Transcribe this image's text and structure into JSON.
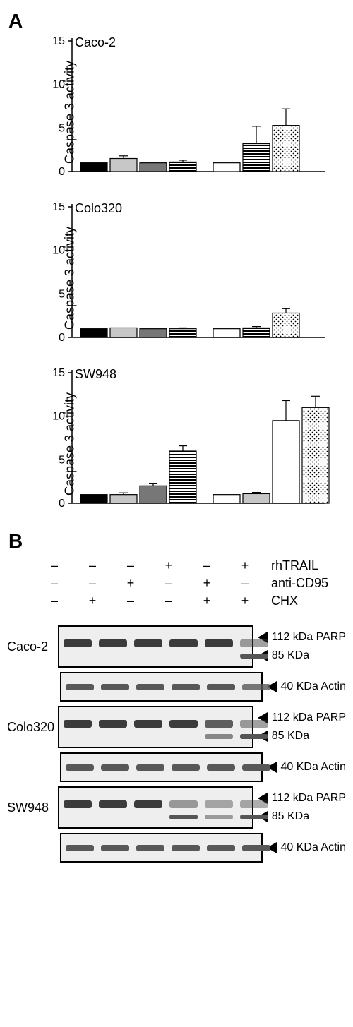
{
  "panelA": {
    "label": "A",
    "ylabel": "Caspase 3 activity",
    "ymax": 15,
    "ytick_step": 5,
    "charts": [
      {
        "title": "Caco-2",
        "bars": [
          {
            "val": 1.0,
            "err": 0,
            "fill": "#000000",
            "pattern": "none"
          },
          {
            "val": 1.5,
            "err": 0.3,
            "fill": "#c7c7c7",
            "pattern": "none"
          },
          {
            "val": 1.0,
            "err": 0,
            "fill": "#777777",
            "pattern": "none"
          },
          {
            "val": 1.1,
            "err": 0.2,
            "fill": "#ffffff",
            "pattern": "hstripe"
          },
          {
            "val": 1.0,
            "err": 0,
            "fill": "#ffffff",
            "pattern": "none"
          },
          {
            "val": 3.2,
            "err": 2.0,
            "fill": "#ffffff",
            "pattern": "hstripe"
          },
          {
            "val": 5.3,
            "err": 1.9,
            "fill": "#ffffff",
            "pattern": "dots"
          }
        ],
        "gaps_after": [
          3
        ]
      },
      {
        "title": "Colo320",
        "bars": [
          {
            "val": 1.0,
            "err": 0,
            "fill": "#000000",
            "pattern": "none"
          },
          {
            "val": 1.1,
            "err": 0,
            "fill": "#c7c7c7",
            "pattern": "none"
          },
          {
            "val": 1.0,
            "err": 0,
            "fill": "#777777",
            "pattern": "none"
          },
          {
            "val": 1.0,
            "err": 0.1,
            "fill": "#ffffff",
            "pattern": "hstripe"
          },
          {
            "val": 1.0,
            "err": 0,
            "fill": "#ffffff",
            "pattern": "none"
          },
          {
            "val": 1.1,
            "err": 0.15,
            "fill": "#ffffff",
            "pattern": "hstripe"
          },
          {
            "val": 2.8,
            "err": 0.5,
            "fill": "#ffffff",
            "pattern": "dots"
          }
        ],
        "gaps_after": [
          3
        ]
      },
      {
        "title": "SW948",
        "bars": [
          {
            "val": 1.0,
            "err": 0,
            "fill": "#000000",
            "pattern": "none"
          },
          {
            "val": 1.0,
            "err": 0.2,
            "fill": "#c7c7c7",
            "pattern": "none"
          },
          {
            "val": 2.0,
            "err": 0.3,
            "fill": "#777777",
            "pattern": "none"
          },
          {
            "val": 6.0,
            "err": 0.6,
            "fill": "#ffffff",
            "pattern": "hstripe"
          },
          {
            "val": 1.0,
            "err": 0,
            "fill": "#ffffff",
            "pattern": "none"
          },
          {
            "val": 1.1,
            "err": 0.15,
            "fill": "#c7c7c7",
            "pattern": "none"
          },
          {
            "val": 9.5,
            "err": 2.3,
            "fill": "#ffffff",
            "pattern": "none"
          },
          {
            "val": 11.0,
            "err": 1.3,
            "fill": "#ffffff",
            "pattern": "dots"
          }
        ],
        "gaps_after": [
          3
        ]
      }
    ]
  },
  "panelB": {
    "label": "B",
    "treatments": {
      "rows": [
        {
          "label": "rhTRAIL",
          "marks": [
            "–",
            "–",
            "–",
            "+",
            "–",
            "+"
          ]
        },
        {
          "label": "anti-CD95",
          "marks": [
            "–",
            "–",
            "+",
            "–",
            "+",
            "–"
          ]
        },
        {
          "label": "CHX",
          "marks": [
            "–",
            "+",
            "–",
            "–",
            "+",
            "+"
          ]
        }
      ]
    },
    "band_labels": {
      "parp_full": "112 kDa PARP",
      "parp_cleaved": "85 KDa",
      "actin": "40 KDa Actin"
    },
    "cells": [
      {
        "name": "Caco-2",
        "parp_full": [
          1,
          1,
          1,
          1,
          1,
          0.2
        ],
        "parp_cleaved": [
          0,
          0,
          0,
          0,
          0,
          1
        ],
        "actin": [
          1,
          1,
          1,
          1,
          1,
          0.7
        ]
      },
      {
        "name": "Colo320",
        "parp_full": [
          1,
          1,
          1,
          1,
          0.7,
          0.2
        ],
        "parp_cleaved": [
          0,
          0,
          0,
          0,
          0.5,
          1
        ],
        "actin": [
          1,
          1,
          1,
          1,
          1,
          1
        ]
      },
      {
        "name": "SW948",
        "parp_full": [
          1,
          1,
          1,
          0.2,
          0.1,
          0.1
        ],
        "parp_cleaved": [
          0,
          0,
          0,
          1,
          0.3,
          1
        ],
        "actin": [
          1,
          1,
          1,
          1,
          1,
          1
        ]
      }
    ]
  }
}
